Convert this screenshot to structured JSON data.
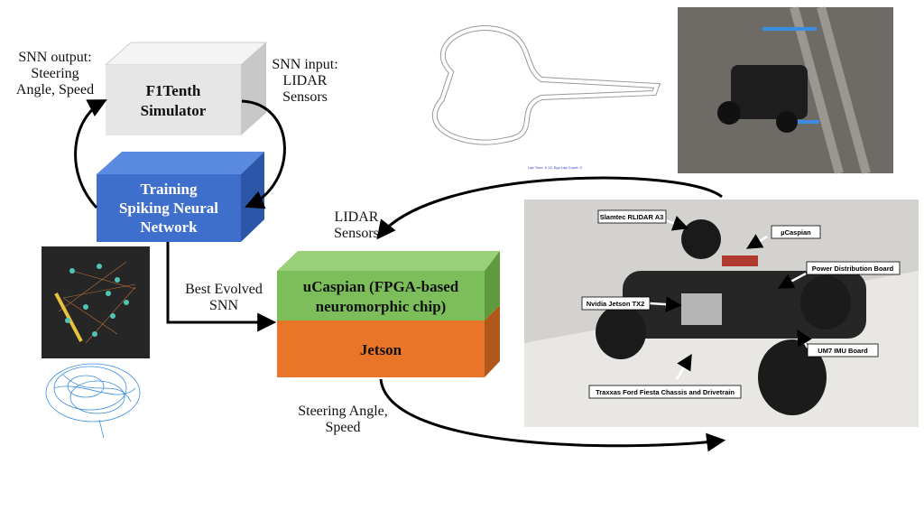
{
  "snn_output": {
    "lines": [
      "SNN output:",
      "Steering",
      "Angle, Speed"
    ]
  },
  "snn_input": {
    "lines": [
      "SNN input:",
      "LIDAR",
      "Sensors"
    ]
  },
  "simulator": {
    "lines": [
      "F1Tenth",
      "Simulator"
    ]
  },
  "training": {
    "lines": [
      "Training",
      "Spiking Neural",
      "Network"
    ]
  },
  "best_evolved": {
    "lines": [
      "Best Evolved",
      "SNN"
    ]
  },
  "lidar": {
    "lines": [
      "LIDAR",
      "Sensors"
    ]
  },
  "ucaspian": {
    "lines": [
      "uCaspian (FPGA-based",
      "neuromorphic chip)"
    ]
  },
  "jetson": {
    "label": "Jetson"
  },
  "steering": {
    "lines": [
      "Steering Angle,",
      "Speed"
    ]
  },
  "track": {
    "caption": "Lap Time: 0.13; Ego Lap Count: 0"
  },
  "car_labels": [
    "Slamtec RLIDAR A3",
    "µCaspian",
    "Power Distribution Board",
    "Nvidia Jetson TX2",
    "UM7 IMU Board",
    "Traxxas Ford Fiesta Chassis and Drivetrain"
  ]
}
